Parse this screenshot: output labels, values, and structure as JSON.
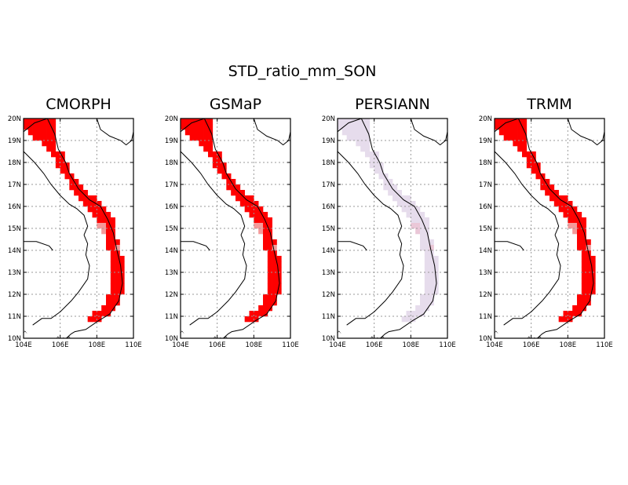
{
  "title": "STD_ratio_mm_SON",
  "map_extent": {
    "lon": [
      104,
      110
    ],
    "lat": [
      10,
      20
    ]
  },
  "lat_tick_labels": [
    "10N",
    "11N",
    "12N",
    "13N",
    "14N",
    "15N",
    "16N",
    "17N",
    "18N",
    "19N",
    "20N"
  ],
  "lon_tick_labels": [
    "104E",
    "106E",
    "108E",
    "110E"
  ],
  "panels": [
    {
      "name": "CMORPH",
      "fill": "#ff0000",
      "pale": "#f59999"
    },
    {
      "name": "GSMaP",
      "fill": "#ff0000",
      "pale": "#f59999"
    },
    {
      "name": "PERSIANN",
      "fill": "#e6dcec",
      "pale": "#eac7d7"
    },
    {
      "name": "TRMM",
      "fill": "#ff0000",
      "pale": "#f59999"
    }
  ]
}
